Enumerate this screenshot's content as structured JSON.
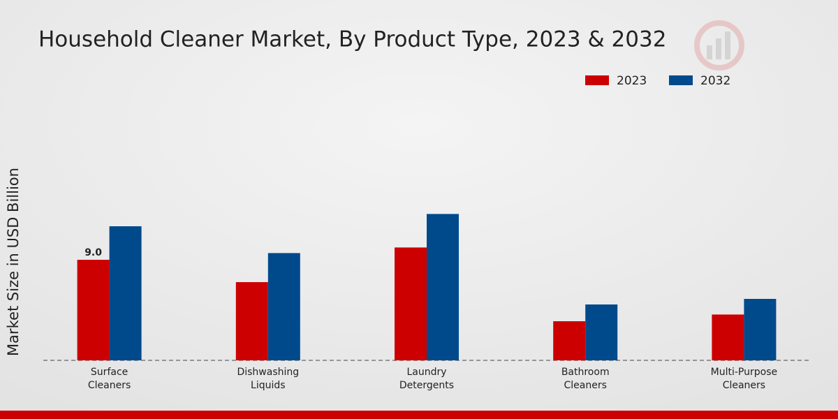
{
  "chart_data": {
    "type": "bar",
    "title": "Household Cleaner Market, By Product Type, 2023 & 2032",
    "y_label": "Market Size in USD Billion",
    "categories": [
      "Surface\nCleaners",
      "Dishwashing\nLiquids",
      "Laundry\nDetergents",
      "Bathroom\nCleaners",
      "Multi-Purpose\nCleaners"
    ],
    "series": [
      {
        "name": "2023",
        "color": "#cc0000",
        "values": [
          9.0,
          7.0,
          10.1,
          3.5,
          4.1
        ],
        "value_labels": [
          "9.0",
          null,
          null,
          null,
          null
        ]
      },
      {
        "name": "2032",
        "color": "#004a8c",
        "values": [
          12.0,
          9.6,
          13.1,
          5.0,
          5.5
        ]
      }
    ],
    "ylim": [
      0,
      16
    ],
    "legend": "top-right"
  }
}
